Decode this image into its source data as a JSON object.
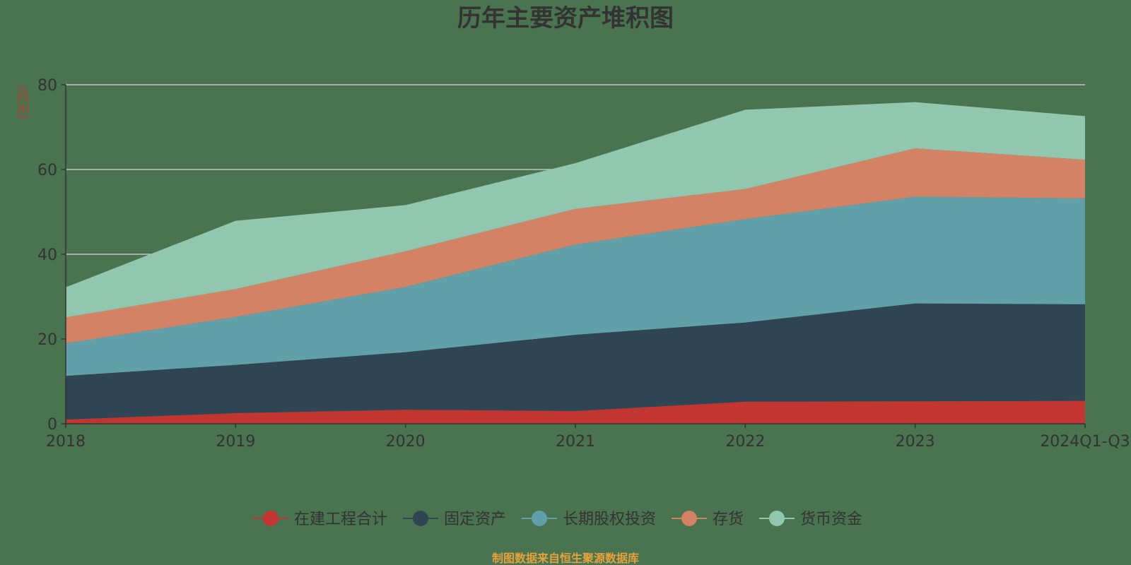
{
  "chart_data": {
    "type": "area",
    "stacked": true,
    "title": "历年主要资产堆积图",
    "unit_label": "(亿元)",
    "categories": [
      "2018",
      "2019",
      "2020",
      "2021",
      "2022",
      "2023",
      "2024Q1-Q3"
    ],
    "ylim": [
      0,
      80
    ],
    "yticks": [
      0,
      20,
      40,
      60,
      80
    ],
    "grid": true,
    "legend_position": "bottom",
    "series": [
      {
        "name": "在建工程合计",
        "color": "#c23531",
        "values": [
          1.0,
          2.5,
          3.3,
          3.0,
          5.2,
          5.3,
          5.4
        ]
      },
      {
        "name": "固定资产",
        "color": "#2f4554",
        "values": [
          10.3,
          11.4,
          13.6,
          18.0,
          18.7,
          23.1,
          22.8
        ]
      },
      {
        "name": "长期股权投资",
        "color": "#61a0a8",
        "values": [
          7.7,
          11.3,
          15.4,
          21.3,
          24.4,
          25.2,
          25.0
        ]
      },
      {
        "name": "存货",
        "color": "#d48265",
        "values": [
          6.1,
          6.6,
          8.4,
          8.4,
          7.1,
          11.4,
          9.1
        ]
      },
      {
        "name": "货币资金",
        "color": "#91c7ae",
        "values": [
          7.1,
          16.1,
          10.9,
          10.8,
          18.7,
          10.9,
          10.3
        ]
      }
    ],
    "footer": "制图数据来自恒生聚源数据库"
  }
}
